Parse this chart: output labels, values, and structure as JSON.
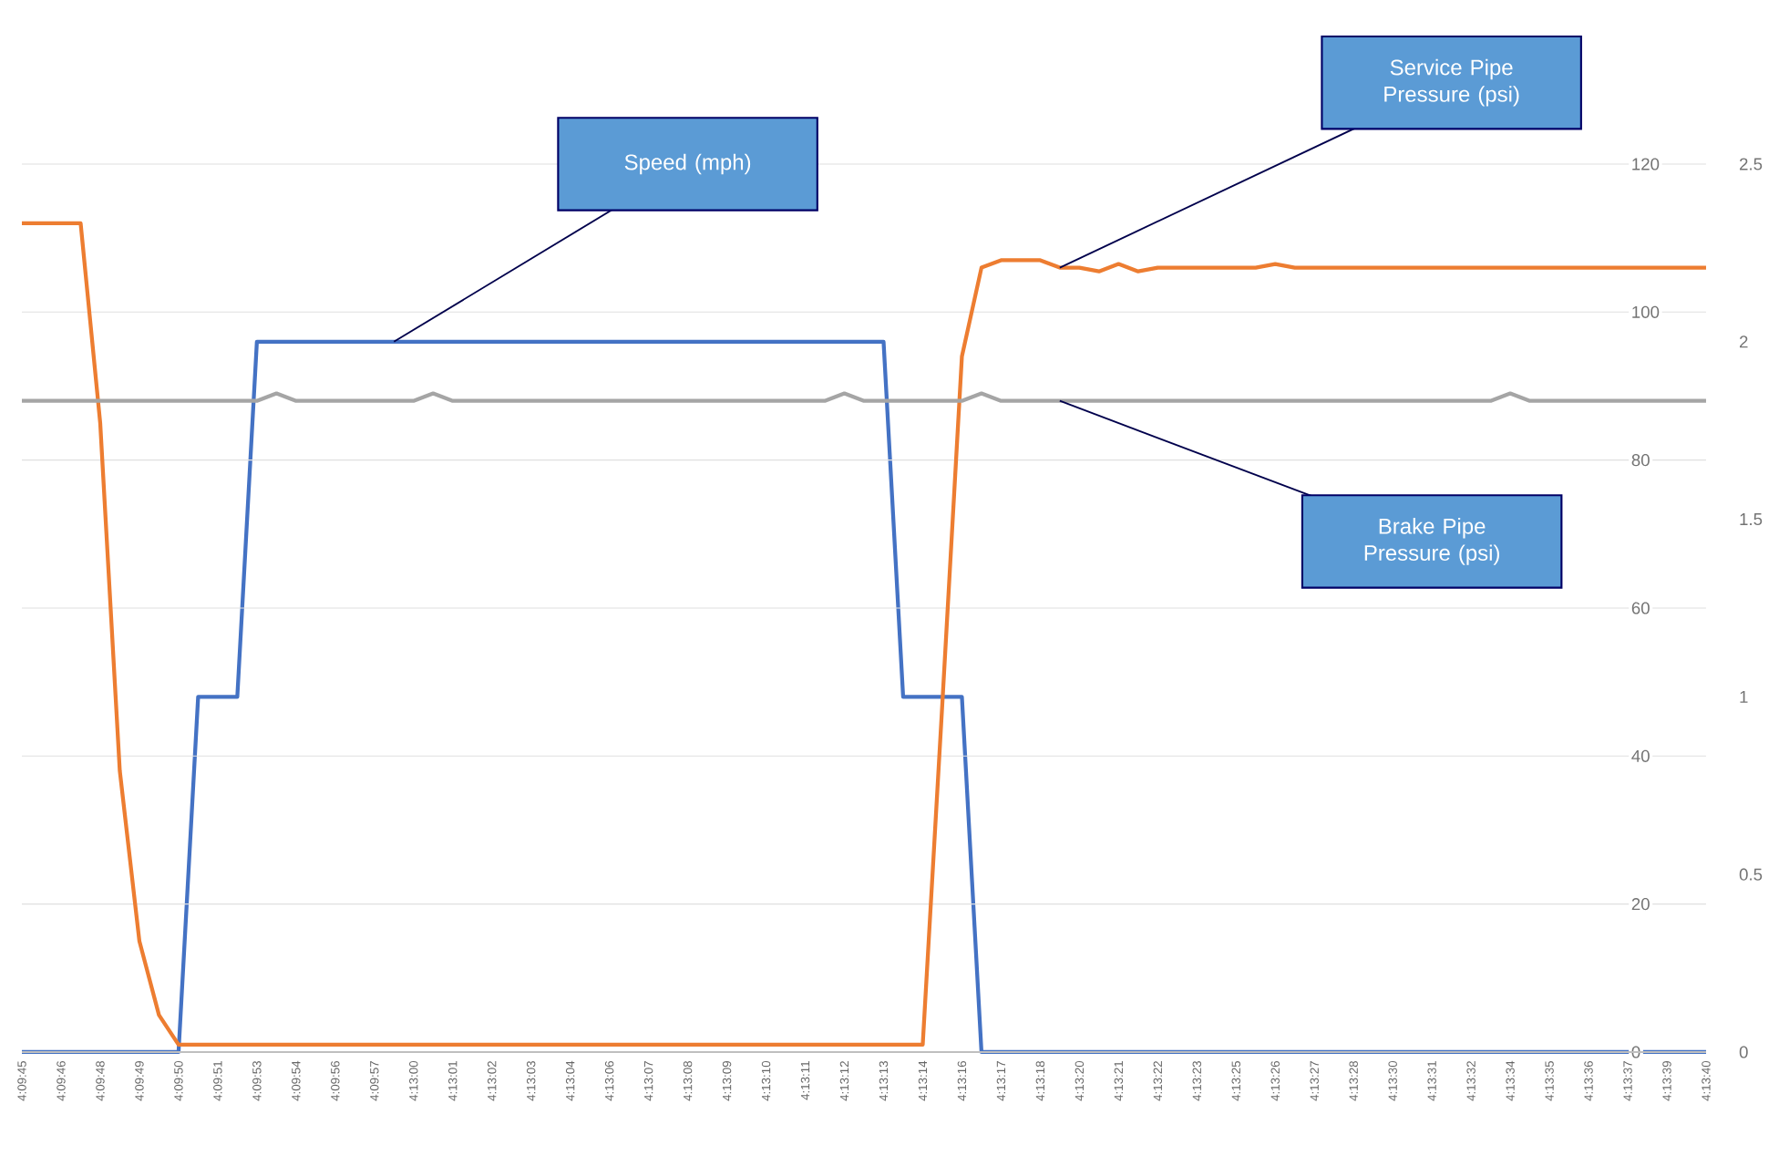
{
  "chart_data": {
    "type": "line",
    "categories": [
      "4:09:45",
      null,
      "4:09:46",
      null,
      "4:09:48",
      null,
      "4:09:49",
      null,
      "4:09:50",
      null,
      "4:09:51",
      null,
      "4:09:53",
      null,
      "4:09:54",
      null,
      "4:09:56",
      null,
      "4:09:57",
      null,
      "4:13:00",
      null,
      "4:13:01",
      null,
      "4:13:02",
      null,
      "4:13:03",
      null,
      "4:13:04",
      null,
      "4:13:06",
      null,
      "4:13:07",
      null,
      "4:13:08",
      null,
      "4:13:09",
      null,
      "4:13:10",
      null,
      "4:13:11",
      null,
      "4:13:12",
      null,
      "4:13:13",
      null,
      "4:13:14",
      null,
      "4:13:16",
      null,
      "4:13:17",
      null,
      "4:13:18",
      null,
      "4:13:20",
      null,
      "4:13:21",
      null,
      "4:13:22",
      null,
      "4:13:23",
      null,
      "4:13:25",
      null,
      "4:13:26",
      null,
      "4:13:27",
      null,
      "4:13:28",
      null,
      "4:13:30",
      null,
      "4:13:31",
      null,
      "4:13:32",
      null,
      "4:13:34",
      null,
      "4:13:35",
      null,
      "4:13:36",
      null,
      "4:13:37",
      null,
      "4:13:39",
      null,
      "4:13:40"
    ],
    "series": [
      {
        "name": "Speed (mph)",
        "color": "#4472c4",
        "axis": "y2",
        "values": [
          0,
          0,
          0,
          0,
          0,
          0,
          0,
          0,
          0,
          1,
          1,
          1,
          2,
          2,
          2,
          2,
          2,
          2,
          2,
          2,
          2,
          2,
          2,
          2,
          2,
          2,
          2,
          2,
          2,
          2,
          2,
          2,
          2,
          2,
          2,
          2,
          2,
          2,
          2,
          2,
          2,
          2,
          2,
          2,
          2,
          1,
          1,
          1,
          1,
          0,
          0,
          0,
          0,
          0,
          0,
          0,
          0,
          0,
          0,
          0,
          0,
          0,
          0,
          0,
          0,
          0,
          0,
          0,
          0,
          0,
          0,
          0,
          0,
          0,
          0,
          0,
          0,
          0,
          0,
          0,
          0,
          0,
          0,
          0,
          0,
          0,
          0
        ]
      },
      {
        "name": "Service Pipe Pressure (psi)",
        "color": "#ed7d31",
        "values": [
          112,
          112,
          112,
          112,
          85,
          38,
          15,
          5,
          1,
          1,
          1,
          1,
          1,
          1,
          1,
          1,
          1,
          1,
          1,
          1,
          1,
          1,
          1,
          1,
          1,
          1,
          1,
          1,
          1,
          1,
          1,
          1,
          1,
          1,
          1,
          1,
          1,
          1,
          1,
          1,
          1,
          1,
          1,
          1,
          1,
          1,
          1,
          47,
          94,
          106,
          107,
          107,
          107,
          106,
          106,
          105.5,
          106.5,
          105.5,
          106,
          106,
          106,
          106,
          106,
          106,
          106.5,
          106,
          106,
          106,
          106,
          106,
          106,
          106,
          106,
          106,
          106,
          106,
          106,
          106,
          106,
          106,
          106,
          106,
          106,
          106,
          106,
          106,
          106
        ]
      },
      {
        "name": "Brake Pipe Pressure (psi)",
        "color": "#a5a5a5",
        "values": [
          88,
          88,
          88,
          88,
          88,
          88,
          88,
          88,
          88,
          88,
          88,
          88,
          88,
          89,
          88,
          88,
          88,
          88,
          88,
          88,
          88,
          89,
          88,
          88,
          88,
          88,
          88,
          88,
          88,
          88,
          88,
          88,
          88,
          88,
          88,
          88,
          88,
          88,
          88,
          88,
          88,
          88,
          89,
          88,
          88,
          88,
          88,
          88,
          88,
          89,
          88,
          88,
          88,
          88,
          88,
          88,
          88,
          88,
          88,
          88,
          88,
          88,
          88,
          88,
          88,
          88,
          88,
          88,
          88,
          88,
          88,
          88,
          88,
          88,
          88,
          88,
          89,
          88,
          88,
          88,
          88,
          88,
          88,
          88,
          88,
          88,
          88
        ]
      }
    ],
    "ylim": [
      0,
      120
    ],
    "yticks": [
      0,
      20,
      40,
      60,
      80,
      100,
      120
    ],
    "y2lim": [
      0,
      2.5
    ],
    "y2ticks": [
      0,
      0.5,
      1,
      1.5,
      2,
      2.5
    ],
    "grid": "y"
  }
}
